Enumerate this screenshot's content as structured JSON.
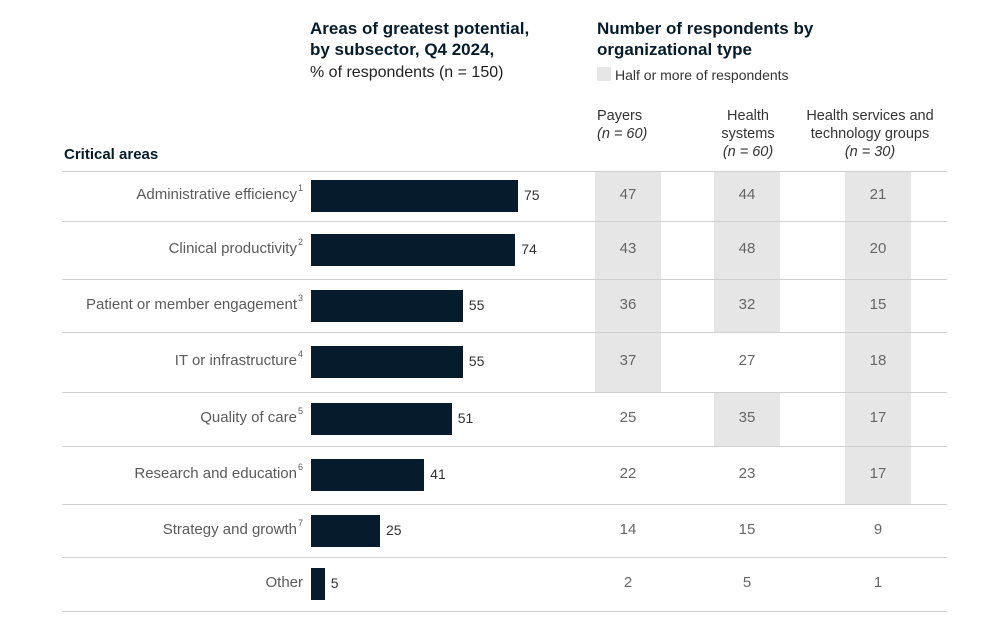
{
  "left_title": [
    "Areas of greatest potential,",
    "by subsector, Q4 2024,"
  ],
  "left_subtitle": "% of respondents (n = 150)",
  "right_title": [
    "Number of respondents by",
    "organizational type"
  ],
  "legend": {
    "label": "Half or more of respondents",
    "color": "#e6e6e6"
  },
  "row_header": "Critical areas",
  "columns": [
    {
      "name": [
        "Payers"
      ],
      "n": "(n = 60)"
    },
    {
      "name": [
        "Health",
        "systems"
      ],
      "n": "(n = 60)"
    },
    {
      "name": [
        "Health services and",
        "technology groups"
      ],
      "n": "(n = 30)"
    }
  ],
  "chart_data": {
    "type": "bar",
    "orientation": "horizontal",
    "title": "Areas of greatest potential, by subsector, Q4 2024",
    "ylabel": "Critical areas",
    "xlabel": "% of respondents (n = 150)",
    "xlim": [
      0,
      100
    ],
    "bar_color": "#061c2c",
    "categories": [
      {
        "label": "Administrative efficiency",
        "sup": "1"
      },
      {
        "label": "Clinical productivity",
        "sup": "2"
      },
      {
        "label": "Patient or member engagement",
        "sup": "3"
      },
      {
        "label": "IT or infrastructure",
        "sup": "4"
      },
      {
        "label": "Quality of care",
        "sup": "5"
      },
      {
        "label": "Research and education",
        "sup": "6"
      },
      {
        "label": "Strategy and growth",
        "sup": "7"
      },
      {
        "label": "Other",
        "sup": ""
      }
    ],
    "values": [
      75,
      74,
      55,
      55,
      51,
      41,
      25,
      5
    ],
    "table": {
      "series": [
        {
          "name": "Payers",
          "n": 60,
          "values": [
            47,
            43,
            36,
            37,
            25,
            22,
            14,
            2
          ],
          "highlight": [
            true,
            true,
            true,
            true,
            false,
            false,
            false,
            false
          ]
        },
        {
          "name": "Health systems",
          "n": 60,
          "values": [
            44,
            48,
            32,
            27,
            35,
            23,
            15,
            5
          ],
          "highlight": [
            true,
            true,
            true,
            false,
            true,
            false,
            false,
            false
          ]
        },
        {
          "name": "Health services and technology groups",
          "n": 30,
          "values": [
            21,
            20,
            15,
            18,
            17,
            17,
            9,
            1
          ],
          "highlight": [
            true,
            true,
            true,
            true,
            true,
            true,
            false,
            false
          ]
        }
      ]
    }
  }
}
